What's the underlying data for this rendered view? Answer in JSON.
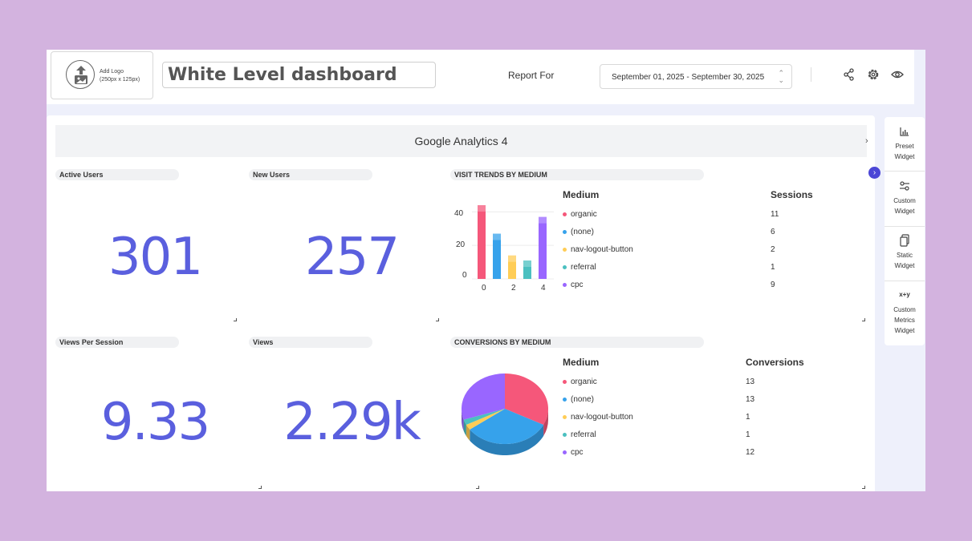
{
  "header": {
    "logo_title": "Add Logo",
    "logo_size": "(250px x 125px)",
    "dashboard_title": "White Level dashboard",
    "report_for_label": "Report For",
    "date_range": "September 01, 2025 - September 30, 2025",
    "icons": [
      "share-icon",
      "gear-icon",
      "eye-icon"
    ]
  },
  "section": {
    "title": "Google Analytics 4"
  },
  "metrics": [
    {
      "label": "Active Users",
      "value": "301"
    },
    {
      "label": "New Users",
      "value": "257"
    },
    {
      "label": "Views Per Session",
      "value": "9.33"
    },
    {
      "label": "Views",
      "value": "2.29k"
    }
  ],
  "visit_trends": {
    "label": "VISIT TRENDS BY MEDIUM",
    "col_medium": "Medium",
    "col_value": "Sessions",
    "rows": [
      {
        "name": "organic",
        "value": "11",
        "color": "#f5577a"
      },
      {
        "name": "(none)",
        "value": "6",
        "color": "#36a2eb"
      },
      {
        "name": "nav-logout-button",
        "value": "2",
        "color": "#ffcd56"
      },
      {
        "name": "referral",
        "value": "1",
        "color": "#4bc0c0"
      },
      {
        "name": "cpc",
        "value": "9",
        "color": "#9966ff"
      }
    ]
  },
  "conversions": {
    "label": "CONVERSIONS BY MEDIUM",
    "col_medium": "Medium",
    "col_value": "Conversions",
    "rows": [
      {
        "name": "organic",
        "value": "13",
        "color": "#f5577a"
      },
      {
        "name": "(none)",
        "value": "13",
        "color": "#36a2eb"
      },
      {
        "name": "nav-logout-button",
        "value": "1",
        "color": "#ffcd56"
      },
      {
        "name": "referral",
        "value": "1",
        "color": "#4bc0c0"
      },
      {
        "name": "cpc",
        "value": "12",
        "color": "#9966ff"
      }
    ]
  },
  "chart_data": [
    {
      "type": "bar",
      "x": [
        0,
        1,
        2,
        3,
        4
      ],
      "values": [
        44,
        27,
        14,
        11,
        37
      ],
      "ylim": [
        0,
        44
      ],
      "yticks": [
        "0",
        "20",
        "40"
      ],
      "xticks": [
        "0",
        "2",
        "4"
      ]
    },
    {
      "type": "pie",
      "categories": [
        "organic",
        "(none)",
        "nav-logout-button",
        "referral",
        "cpc"
      ],
      "values": [
        13,
        13,
        1,
        1,
        12
      ]
    }
  ],
  "sidebar": {
    "items": [
      {
        "line1": "Preset",
        "line2": "Widget",
        "line3": ""
      },
      {
        "line1": "Custom",
        "line2": "Widget",
        "line3": ""
      },
      {
        "line1": "Static",
        "line2": "Widget",
        "line3": ""
      },
      {
        "line1": "Custom",
        "line2": "Metrics",
        "line3": "Widget"
      }
    ],
    "xy_glyph": "x+y"
  }
}
